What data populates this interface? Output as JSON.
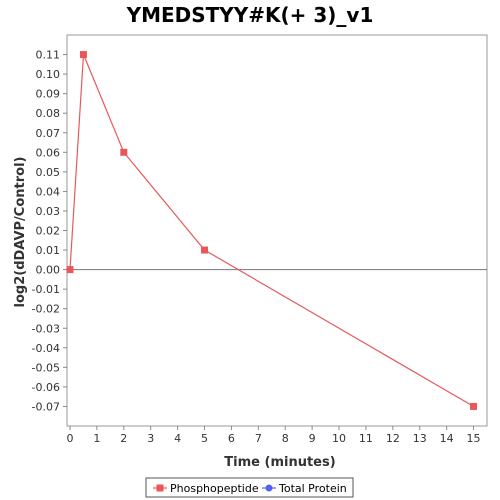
{
  "chart_data": {
    "type": "line",
    "title": "YMEDSTYY#K(+ 3)_v1",
    "xlabel": "Time (minutes)",
    "ylabel": "log2(dDAVP/Control)",
    "xlim": [
      0,
      15.5
    ],
    "ylim": [
      -0.08,
      0.12
    ],
    "xticks": [
      0,
      1,
      2,
      3,
      4,
      5,
      6,
      7,
      8,
      9,
      10,
      11,
      12,
      13,
      14,
      15
    ],
    "yticks": [
      0.11,
      0.1,
      0.09,
      0.08,
      0.07,
      0.06,
      0.05,
      0.04,
      0.03,
      0.02,
      0.01,
      0.0,
      -0.01,
      -0.02,
      -0.03,
      -0.04,
      -0.05,
      -0.06,
      -0.07
    ],
    "ytick_labels": [
      "0.11",
      "0.10",
      "0.09",
      "0.08",
      "0.07",
      "0.06",
      "0.05",
      "0.04",
      "0.03",
      "0.02",
      "0.01",
      "0.00",
      "-0.01",
      "-0.02",
      "-0.03",
      "-0.04",
      "-0.05",
      "-0.06",
      "-0.07"
    ],
    "zero_line": 0,
    "grid": false,
    "legend_position": "bottom",
    "series": [
      {
        "name": "Phosphopeptide",
        "color": "#e8585a",
        "marker": "square",
        "x": [
          0,
          0.5,
          2,
          5,
          15
        ],
        "y": [
          0.0,
          0.11,
          0.06,
          0.01,
          -0.07
        ]
      },
      {
        "name": "Total Protein",
        "color": "#5563e8",
        "marker": "circle",
        "x": [],
        "y": []
      }
    ]
  }
}
